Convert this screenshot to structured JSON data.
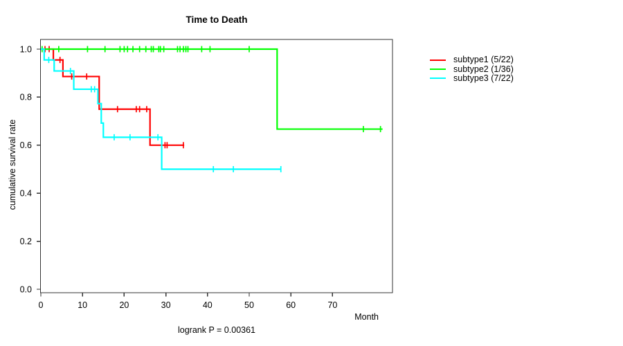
{
  "page": {
    "background": "#ffffff",
    "axis_color": "#333333"
  },
  "chart_data": {
    "type": "line",
    "subtype": "kaplan-meier-step-survival",
    "title": "Time to Death",
    "xlabel": "Month",
    "ylabel": "cumulative survival rate",
    "footnote": "logrank P = 0.00361",
    "grid": false,
    "legend_position": "right-outside",
    "x_ticks": [
      0,
      10,
      20,
      30,
      40,
      50,
      60,
      70
    ],
    "y_ticks": [
      0.0,
      0.2,
      0.4,
      0.6,
      0.8,
      1.0
    ],
    "y_tick_labels": [
      "0.0",
      "0.2",
      "0.4",
      "0.6",
      "0.8",
      "1.0"
    ],
    "xlim": [
      0,
      84
    ],
    "ylim": [
      0,
      1
    ],
    "series": [
      {
        "name": "subtype1",
        "label": "subtype1 (5/22)",
        "color": "#FF0000",
        "steps": [
          [
            0,
            1.0
          ],
          [
            3.0,
            0.955
          ],
          [
            5.3,
            0.886
          ],
          [
            14.0,
            0.75
          ],
          [
            26.2,
            0.6
          ]
        ],
        "end_month": 34.4,
        "censor_marks": [
          [
            1.0,
            1.0
          ],
          [
            2.0,
            1.0
          ],
          [
            4.6,
            0.955
          ],
          [
            7.4,
            0.886
          ],
          [
            11.0,
            0.886
          ],
          [
            18.4,
            0.75
          ],
          [
            22.9,
            0.75
          ],
          [
            23.7,
            0.75
          ],
          [
            25.4,
            0.75
          ],
          [
            29.8,
            0.6
          ],
          [
            30.3,
            0.6
          ],
          [
            34.2,
            0.6
          ]
        ]
      },
      {
        "name": "subtype2",
        "label": "subtype2 (1/36)",
        "color": "#00FF00",
        "steps": [
          [
            0,
            1.0
          ],
          [
            56.7,
            0.667
          ]
        ],
        "end_month": 82.0,
        "censor_marks": [
          [
            0.3,
            1.0
          ],
          [
            4.3,
            1.0
          ],
          [
            11.2,
            1.0
          ],
          [
            15.4,
            1.0
          ],
          [
            19.0,
            1.0
          ],
          [
            20.0,
            1.0
          ],
          [
            20.8,
            1.0
          ],
          [
            22.1,
            1.0
          ],
          [
            23.7,
            1.0
          ],
          [
            25.2,
            1.0
          ],
          [
            26.5,
            1.0
          ],
          [
            27.0,
            1.0
          ],
          [
            28.3,
            1.0
          ],
          [
            28.7,
            1.0
          ],
          [
            29.5,
            1.0
          ],
          [
            32.8,
            1.0
          ],
          [
            33.4,
            1.0
          ],
          [
            34.2,
            1.0
          ],
          [
            34.8,
            1.0
          ],
          [
            35.3,
            1.0
          ],
          [
            38.6,
            1.0
          ],
          [
            40.6,
            1.0
          ],
          [
            50.0,
            1.0
          ],
          [
            77.4,
            0.667
          ],
          [
            81.5,
            0.667
          ]
        ]
      },
      {
        "name": "subtype3",
        "label": "subtype3 (7/22)",
        "color": "#00FFFF",
        "steps": [
          [
            0,
            1.0
          ],
          [
            0.8,
            0.955
          ],
          [
            3.2,
            0.909
          ],
          [
            7.9,
            0.833
          ],
          [
            13.7,
            0.773
          ],
          [
            14.5,
            0.692
          ],
          [
            15.0,
            0.633
          ],
          [
            29.0,
            0.5
          ]
        ],
        "end_month": 57.6,
        "censor_marks": [
          [
            1.9,
            0.955
          ],
          [
            7.1,
            0.909
          ],
          [
            12.1,
            0.833
          ],
          [
            12.9,
            0.833
          ],
          [
            17.6,
            0.633
          ],
          [
            21.4,
            0.633
          ],
          [
            28.1,
            0.633
          ],
          [
            41.4,
            0.5
          ],
          [
            46.2,
            0.5
          ],
          [
            57.6,
            0.5
          ]
        ]
      }
    ]
  },
  "legend": {
    "items": [
      {
        "label": "subtype1 (5/22)",
        "color": "#FF0000"
      },
      {
        "label": "subtype2 (1/36)",
        "color": "#00FF00"
      },
      {
        "label": "subtype3 (7/22)",
        "color": "#00FFFF"
      }
    ]
  }
}
